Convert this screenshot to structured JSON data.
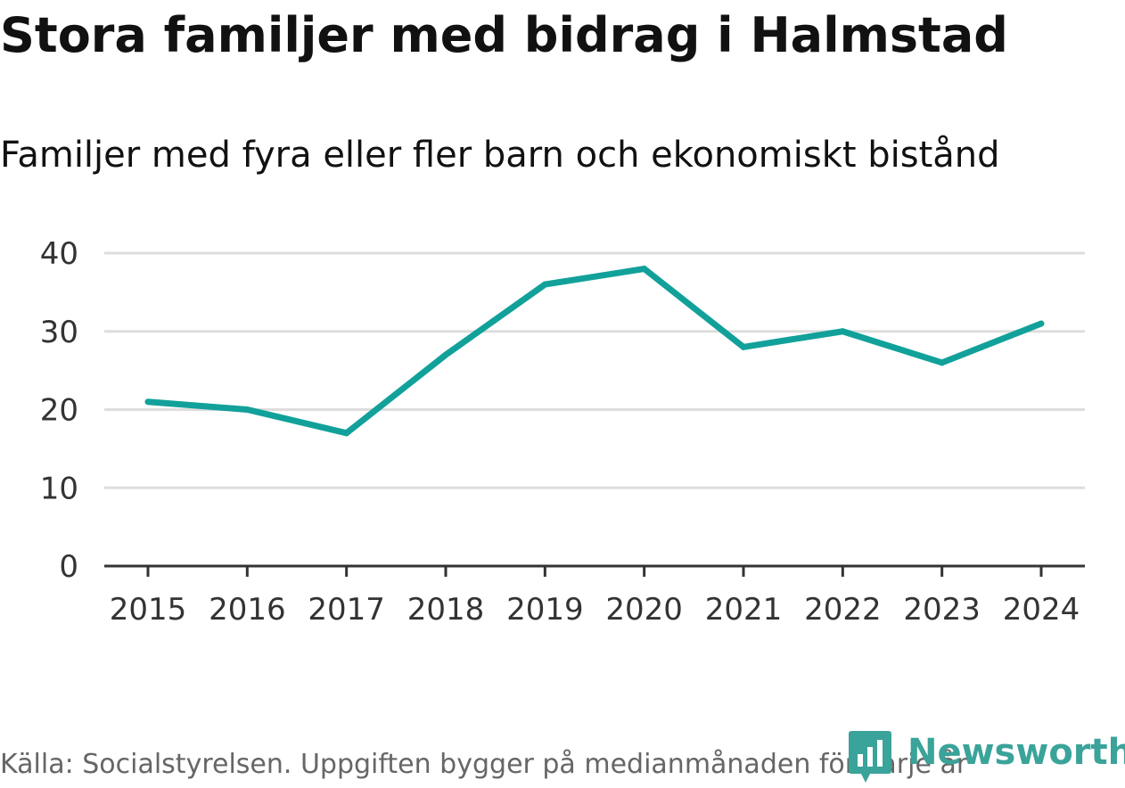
{
  "title": "Stora familjer med bidrag i Halmstad",
  "subtitle": "Familjer med fyra eller fler barn och ekonomiskt bistånd",
  "source": "Källa: Socialstyrelsen. Uppgiften bygger på medianmånaden för varje år",
  "logo_text": "Newsworthy",
  "colors": {
    "line": "#12a19a",
    "grid": "#dddddd",
    "axis": "#333333",
    "logo": "#3aa39a"
  },
  "chart_data": {
    "type": "line",
    "title": "Stora familjer med bidrag i Halmstad",
    "subtitle": "Familjer med fyra eller fler barn och ekonomiskt bistånd",
    "xlabel": "",
    "ylabel": "",
    "categories": [
      "2015",
      "2016",
      "2017",
      "2018",
      "2019",
      "2020",
      "2021",
      "2022",
      "2023",
      "2024"
    ],
    "series": [
      {
        "name": "Familjer med fyra eller fler barn och ekonomiskt bistånd",
        "values": [
          21,
          20,
          17,
          27,
          36,
          38,
          28,
          30,
          26,
          31
        ]
      }
    ],
    "ylim": [
      0,
      40
    ],
    "yticks": [
      0,
      10,
      20,
      30,
      40
    ],
    "grid": true,
    "legend": "none"
  }
}
